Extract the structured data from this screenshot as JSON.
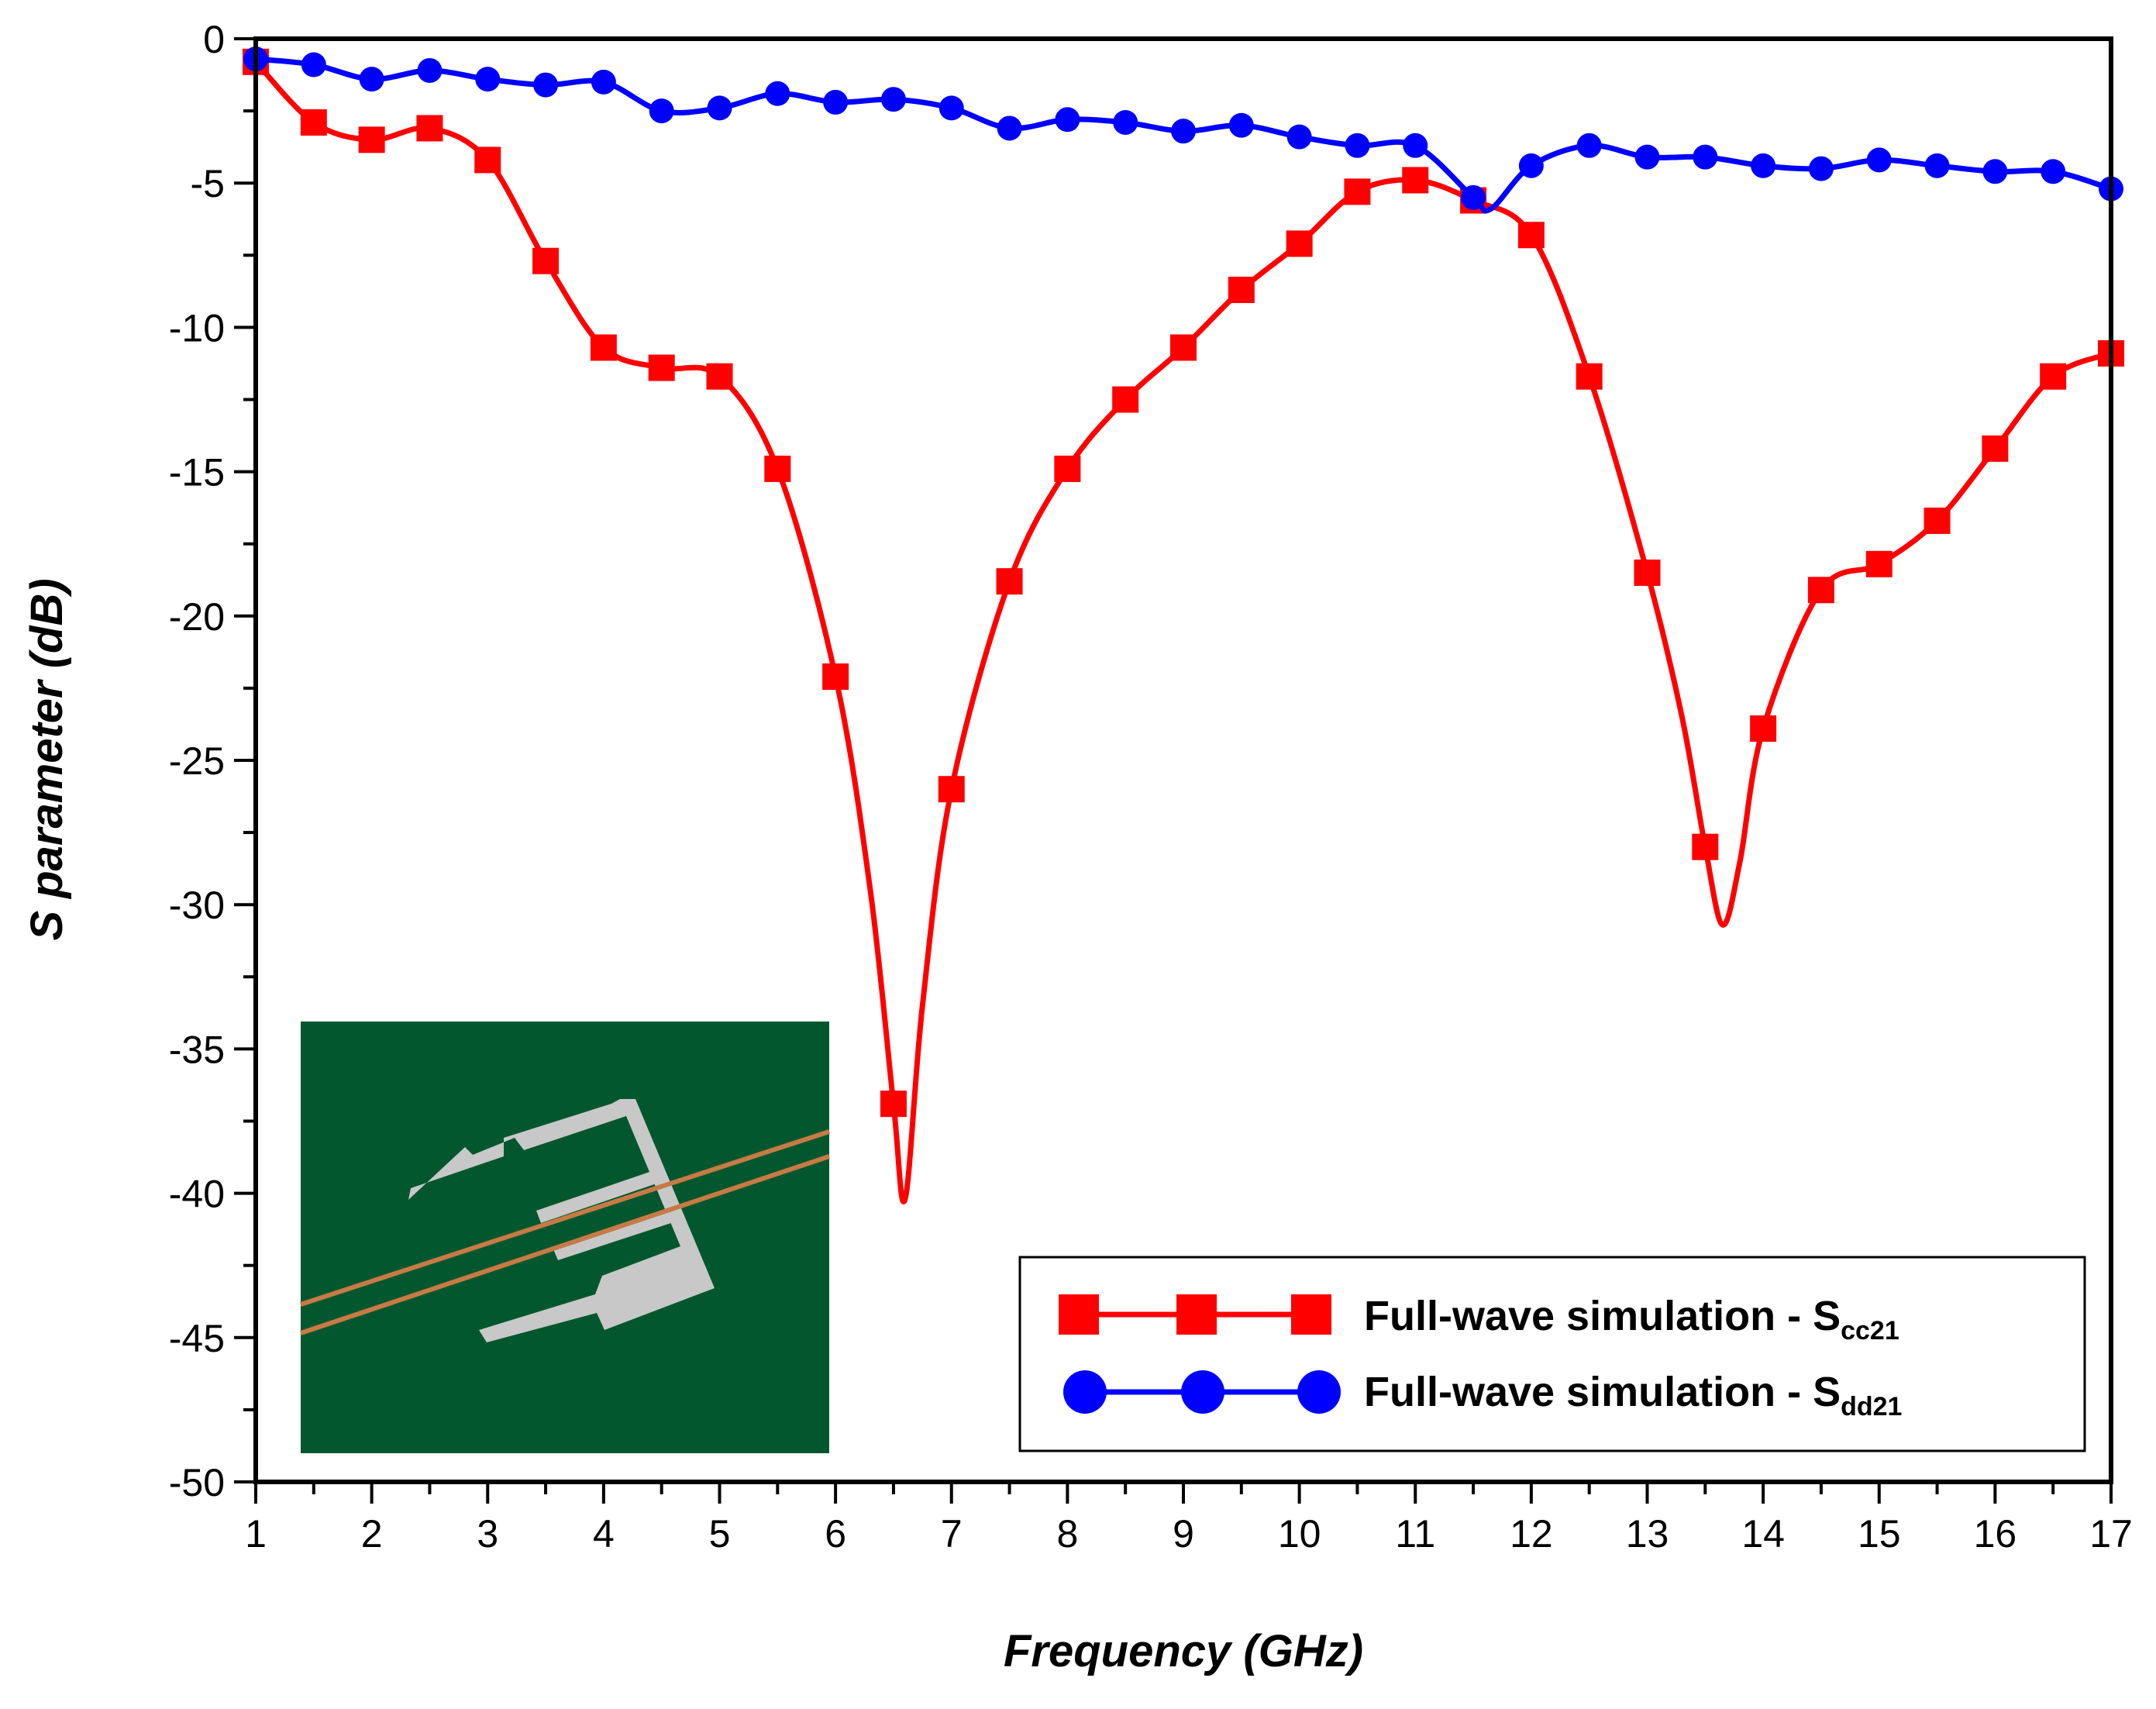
{
  "chart_data": {
    "type": "line",
    "title": "",
    "xlabel": "Frequency (GHz)",
    "ylabel": "S parameter (dB)",
    "xlim": [
      1,
      17
    ],
    "ylim": [
      -50,
      0
    ],
    "x_ticks": [
      "1",
      "2",
      "3",
      "4",
      "5",
      "6",
      "7",
      "8",
      "9",
      "10",
      "11",
      "12",
      "13",
      "14",
      "15",
      "16",
      "17"
    ],
    "y_ticks": [
      "0",
      "-5",
      "-10",
      "-15",
      "-20",
      "-25",
      "-30",
      "-35",
      "-40",
      "-45",
      "-50"
    ],
    "legend_position": "bottom-right",
    "series": [
      {
        "name": "Full-wave simulation - Scc21",
        "label_main": "Full-wave simulation - S",
        "label_sub": "cc21",
        "color": "#ff0000",
        "marker": "square",
        "x": [
          1,
          1.5,
          2,
          2.5,
          3,
          3.5,
          4,
          4.5,
          5,
          5.5,
          6,
          6.5,
          7,
          7.5,
          8,
          8.5,
          9,
          9.5,
          10,
          10.5,
          11,
          11.5,
          12,
          12.5,
          13,
          13.5,
          14,
          14.5,
          15,
          15.5,
          16,
          16.5,
          17
        ],
        "y": [
          -0.8,
          -2.9,
          -3.5,
          -3.1,
          -4.2,
          -7.7,
          -10.7,
          -11.4,
          -11.7,
          -14.9,
          -22.1,
          -36.9,
          -26.0,
          -18.8,
          -14.9,
          -12.5,
          -10.7,
          -8.7,
          -7.1,
          -5.3,
          -4.9,
          -5.6,
          -6.8,
          -11.7,
          -18.5,
          -28.0,
          -23.9,
          -19.1,
          -18.2,
          -16.7,
          -14.2,
          -11.7,
          -10.9
        ],
        "curve_x": [
          1,
          1.5,
          2,
          2.5,
          3,
          3.5,
          4,
          4.5,
          5,
          5.5,
          6,
          6.3,
          6.5,
          6.6,
          6.75,
          7,
          7.5,
          8,
          8.5,
          9,
          9.5,
          10,
          10.5,
          11,
          11.5,
          12,
          12.5,
          13,
          13.3,
          13.5,
          13.65,
          13.8,
          14,
          14.5,
          15,
          15.5,
          16,
          16.5,
          17
        ],
        "curve_y": [
          -0.8,
          -2.9,
          -3.5,
          -3.1,
          -4.2,
          -7.7,
          -10.7,
          -11.4,
          -11.7,
          -14.9,
          -22.1,
          -29.5,
          -36.9,
          -40.2,
          -33.5,
          -26.0,
          -18.8,
          -14.9,
          -12.5,
          -10.7,
          -8.7,
          -7.1,
          -5.3,
          -4.9,
          -5.6,
          -6.8,
          -11.7,
          -18.5,
          -23.5,
          -28.0,
          -30.7,
          -28.5,
          -23.9,
          -19.1,
          -18.2,
          -16.7,
          -14.2,
          -11.7,
          -10.9
        ]
      },
      {
        "name": "Full-wave simulation - Sdd21",
        "label_main": "Full-wave simulation - S",
        "label_sub": "dd21",
        "color": "#0000ff",
        "marker": "circle",
        "x": [
          1,
          1.5,
          2,
          2.5,
          3,
          3.5,
          4,
          4.5,
          5,
          5.5,
          6,
          6.5,
          7,
          7.5,
          8,
          8.5,
          9,
          9.5,
          10,
          10.5,
          11,
          11.5,
          12,
          12.5,
          13,
          13.5,
          14,
          14.5,
          15,
          15.5,
          16,
          16.5,
          17
        ],
        "y": [
          -0.7,
          -0.9,
          -1.4,
          -1.1,
          -1.4,
          -1.6,
          -1.5,
          -2.5,
          -2.4,
          -1.9,
          -2.2,
          -2.1,
          -2.4,
          -3.1,
          -2.8,
          -2.9,
          -3.2,
          -3.0,
          -3.4,
          -3.7,
          -3.7,
          -5.5,
          -4.4,
          -3.7,
          -4.1,
          -4.1,
          -4.4,
          -4.5,
          -4.2,
          -4.4,
          -4.6,
          -4.6,
          -5.2
        ],
        "curve_x": [
          1,
          1.5,
          2,
          2.5,
          3,
          3.5,
          4,
          4.5,
          5,
          5.5,
          6,
          6.5,
          7,
          7.5,
          8,
          8.5,
          9,
          9.5,
          10,
          10.5,
          11,
          11.5,
          11.65,
          12,
          12.5,
          13,
          13.5,
          14,
          14.5,
          15,
          15.5,
          16,
          16.5,
          17
        ],
        "curve_y": [
          -0.7,
          -0.9,
          -1.4,
          -1.1,
          -1.4,
          -1.6,
          -1.5,
          -2.5,
          -2.4,
          -1.9,
          -2.2,
          -2.1,
          -2.4,
          -3.1,
          -2.8,
          -2.9,
          -3.2,
          -3.0,
          -3.4,
          -3.7,
          -3.7,
          -5.5,
          -5.9,
          -4.4,
          -3.7,
          -4.1,
          -4.1,
          -4.4,
          -4.5,
          -4.2,
          -4.4,
          -4.6,
          -4.6,
          -5.2
        ]
      }
    ]
  },
  "colors": {
    "inset_background": "#03572e",
    "inset_metal": "#c8c8c8",
    "inset_trace": "#c87a45"
  },
  "inset": {
    "icon": "defected-ground-structure-layout-icon"
  }
}
